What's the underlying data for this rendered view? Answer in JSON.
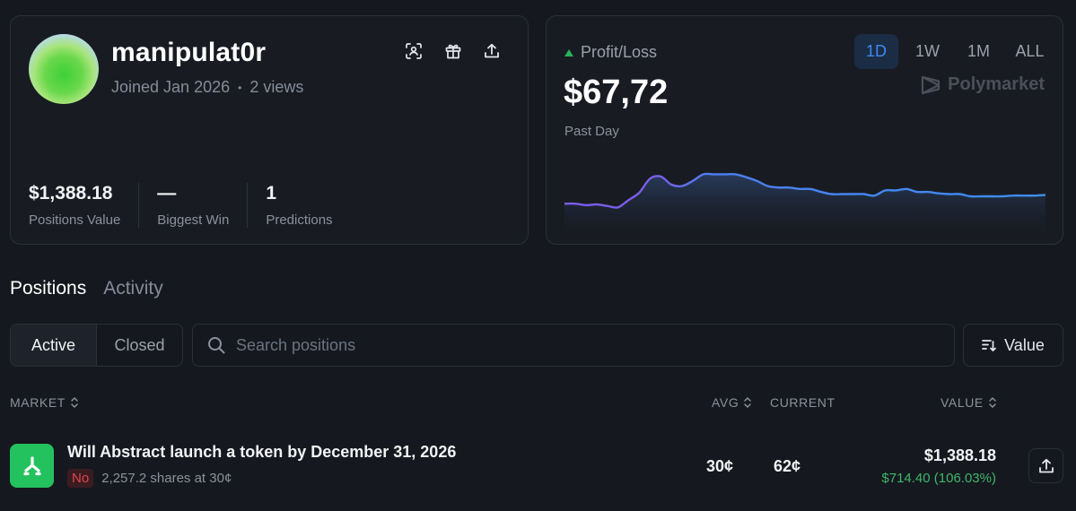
{
  "profile": {
    "username": "manipulat0r",
    "joined": "Joined Jan 2026",
    "separator": "•",
    "views": "2 views",
    "icons": [
      "scan-icon",
      "gift-icon",
      "share-icon"
    ],
    "stats": [
      {
        "value": "$1,388.18",
        "label": "Positions Value"
      },
      {
        "value": "—",
        "label": "Biggest Win"
      },
      {
        "value": "1",
        "label": "Predictions"
      }
    ]
  },
  "pnl": {
    "title": "Profit/Loss",
    "value": "$67,72",
    "period": "Past Day",
    "ranges": [
      "1D",
      "1W",
      "1M",
      "ALL"
    ],
    "active_range": "1D",
    "brand": "Polymarket",
    "trend_color": "#27b35a",
    "chart_data": {
      "type": "area",
      "title": "Profit/Loss",
      "series": [
        {
          "name": "Profit/Loss",
          "values": [
            40,
            40,
            38,
            39,
            37,
            35,
            45,
            55,
            74,
            77,
            66,
            64,
            71,
            80,
            80,
            80,
            80,
            76,
            71,
            64,
            62,
            62,
            60,
            60,
            56,
            53,
            53,
            53,
            53,
            51,
            58,
            58,
            60,
            56,
            56,
            54,
            53,
            53,
            50,
            50,
            50,
            50,
            51,
            51,
            51,
            52
          ]
        }
      ],
      "ylim": [
        0,
        100
      ],
      "colors": [
        "#7b5ce8",
        "#3d8ef0"
      ]
    }
  },
  "tabs": {
    "items": [
      "Positions",
      "Activity"
    ],
    "active": "Positions"
  },
  "filter": {
    "segments": [
      "Active",
      "Closed"
    ],
    "active": "Active",
    "search_placeholder": "Search positions",
    "sort_label": "Value"
  },
  "table": {
    "headers": {
      "market": "MARKET",
      "avg": "AVG",
      "current": "CURRENT",
      "value": "VALUE"
    },
    "rows": [
      {
        "title": "Will Abstract launch a token by December 31, 2026",
        "outcome": "No",
        "shares": "2,257.2 shares at 30¢",
        "avg": "30¢",
        "current": "62¢",
        "value": "$1,388.18",
        "change": "$714.40 (106.03%)",
        "icon_color": "#23c25e"
      }
    ]
  }
}
